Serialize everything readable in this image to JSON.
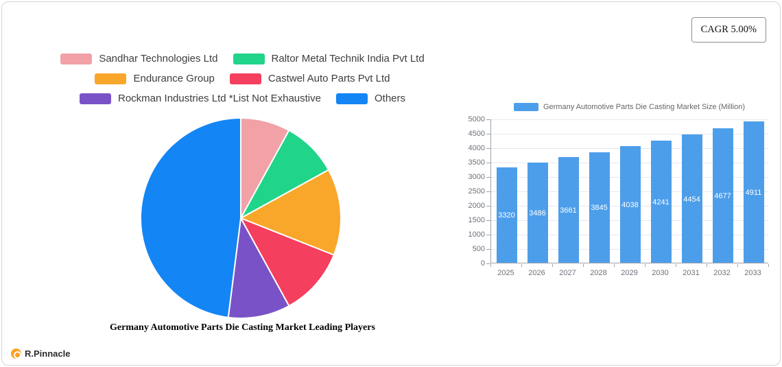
{
  "cagr": {
    "label": "CAGR 5.00%"
  },
  "brand": {
    "label": "R.Pinnacle"
  },
  "chart_data": [
    {
      "type": "pie",
      "title": "Germany Automotive Parts Die Casting Market Leading Players",
      "labels": [
        "Sandhar Technologies Ltd",
        "Raltor Metal Technik India Pvt Ltd",
        "Endurance Group",
        "Castwel Auto Parts Pvt Ltd",
        "Rockman Industries Ltd *List Not Exhaustive",
        "Others"
      ],
      "values": [
        8,
        9,
        14,
        11,
        10,
        48
      ],
      "values_note": "estimated percent share from slice angles",
      "colors": [
        "#f2a1a6",
        "#20d489",
        "#f9a72b",
        "#f43f5e",
        "#7a52c7",
        "#1385f5"
      ],
      "legend_position": "top",
      "start_angle": "top-clockwise"
    },
    {
      "type": "bar",
      "legend": "Germany Automotive Parts Die Casting Market Size (Million)",
      "categories": [
        "2025",
        "2026",
        "2027",
        "2028",
        "2029",
        "2030",
        "2031",
        "2032",
        "2033"
      ],
      "values": [
        3320,
        3486,
        3661,
        3845,
        4038,
        4241,
        4454,
        4677,
        4911
      ],
      "ylim": [
        0,
        5000
      ],
      "ytick_step": 500,
      "bar_color": "#4d9eea",
      "value_label_color": "#ffffff",
      "grid": true,
      "legend_position": "top"
    }
  ]
}
